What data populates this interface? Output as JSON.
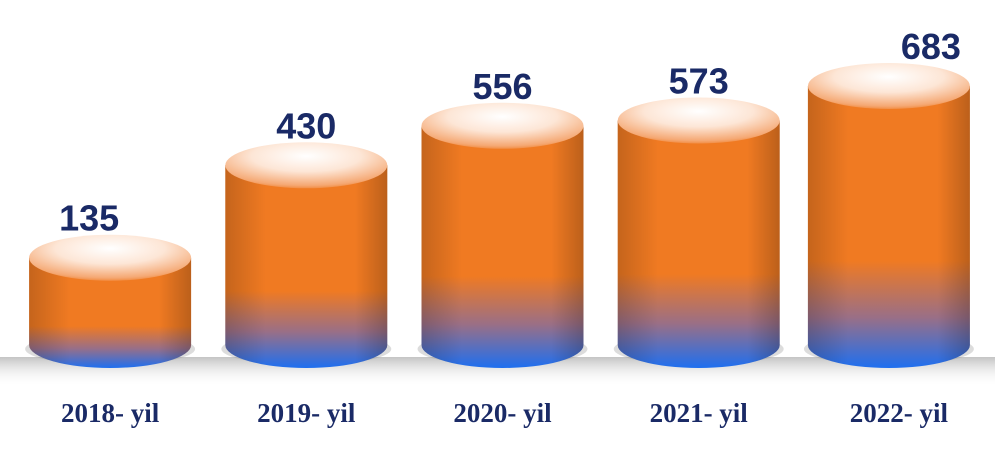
{
  "chart_data": {
    "type": "bar",
    "categories": [
      "2018- yil",
      "2019- yil",
      "2020- yil",
      "2021- yil",
      "2022- yil"
    ],
    "values": [
      135,
      430,
      556,
      573,
      683
    ],
    "title": "",
    "xlabel": "",
    "ylabel": "",
    "colors": {
      "top": "#f07a22",
      "bottom": "#1e6ff0",
      "cap_light": "#fde6d6",
      "label": "#1a2a66"
    }
  }
}
